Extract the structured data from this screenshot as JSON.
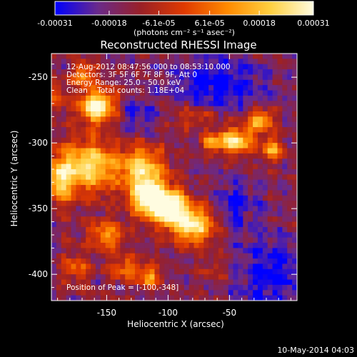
{
  "colorbar": {
    "tick_labels": [
      "-0.00031",
      "-0.00018",
      "-6.1e-05",
      "6.1e-05",
      "0.00018",
      "0.00031"
    ],
    "tick_values": [
      -0.00031,
      -0.00018,
      -6.1e-05,
      6.1e-05,
      0.00018,
      0.00031
    ],
    "range": [
      -0.00031,
      0.00031
    ],
    "units_label": "(photons cm⁻² s⁻¹ asec⁻²)",
    "colormap": [
      "#0000ff",
      "#6a2a8a",
      "#9a2026",
      "#e03a00",
      "#ff8a00",
      "#ffd040",
      "#fffce0"
    ]
  },
  "title": "Reconstructed RHESSI Image",
  "info_lines": [
    "12-Aug-2012 08:47:56.000 to 08:53:10.000",
    "Detectors: 3F 5F 6F 7F 8F 9F, Att 0",
    "Energy Range: 25.0 - 50.0 keV",
    "Clean    Total counts: 1.18E+04"
  ],
  "peak_label": "Position of Peak = [-100,-348]",
  "timestamp": "10-May-2014 04:03",
  "chart_data": {
    "type": "heatmap",
    "title": "Reconstructed RHESSI Image",
    "xlabel": "Heliocentric X (arcsec)",
    "ylabel": "Heliocentric Y (arcsec)",
    "xlim": [
      -195,
      5
    ],
    "ylim": [
      -420,
      -232
    ],
    "xticks": [
      -150,
      -100,
      -50
    ],
    "yticks": [
      -250,
      -300,
      -350,
      -400
    ],
    "xtick_labels": [
      "-150",
      "-100",
      "-50"
    ],
    "ytick_labels": [
      "-250",
      "-300",
      "-350",
      "-400"
    ],
    "peak": [
      -100,
      -348
    ],
    "cell_arcsec": 4,
    "sources": [
      {
        "x": -158,
        "y": -272,
        "sx": 10,
        "sy": 9,
        "amp": 0.95
      },
      {
        "x": -168,
        "y": -248,
        "sx": 7,
        "sy": 6,
        "amp": 0.55
      },
      {
        "x": -165,
        "y": -318,
        "sx": 18,
        "sy": 14,
        "amp": 0.78
      },
      {
        "x": -120,
        "y": -320,
        "sx": 12,
        "sy": 12,
        "amp": 0.7
      },
      {
        "x": -100,
        "y": -348,
        "sx": 10,
        "sy": 10,
        "amp": 1.0
      },
      {
        "x": -80,
        "y": -362,
        "sx": 12,
        "sy": 10,
        "amp": 0.85
      },
      {
        "x": -118,
        "y": -342,
        "sx": 9,
        "sy": 10,
        "amp": 0.8
      },
      {
        "x": -188,
        "y": -330,
        "sx": 6,
        "sy": 12,
        "amp": 0.65
      },
      {
        "x": -150,
        "y": -370,
        "sx": 10,
        "sy": 8,
        "amp": 0.5
      },
      {
        "x": -175,
        "y": -395,
        "sx": 8,
        "sy": 8,
        "amp": 0.35
      },
      {
        "x": -135,
        "y": -395,
        "sx": 9,
        "sy": 7,
        "amp": 0.4
      },
      {
        "x": -115,
        "y": -402,
        "sx": 6,
        "sy": 6,
        "amp": 0.55
      },
      {
        "x": -45,
        "y": -298,
        "sx": 10,
        "sy": 7,
        "amp": 0.8
      },
      {
        "x": -25,
        "y": -283,
        "sx": 7,
        "sy": 6,
        "amp": 0.7
      },
      {
        "x": -15,
        "y": -305,
        "sx": 6,
        "sy": 6,
        "amp": 0.6
      },
      {
        "x": -65,
        "y": -300,
        "sx": 6,
        "sy": 5,
        "amp": 0.45
      },
      {
        "x": -80,
        "y": -280,
        "sx": 12,
        "sy": 6,
        "amp": 0.28
      },
      {
        "x": -190,
        "y": -265,
        "sx": 5,
        "sy": 7,
        "amp": 0.4
      },
      {
        "x": -60,
        "y": -395,
        "sx": 8,
        "sy": 6,
        "amp": 0.22
      }
    ],
    "negative_regions": [
      {
        "x": -60,
        "y": -255,
        "sx": 28,
        "sy": 14,
        "amp": 0.35
      },
      {
        "x": -15,
        "y": -400,
        "sx": 22,
        "sy": 20,
        "amp": 0.32
      },
      {
        "x": -125,
        "y": -280,
        "sx": 10,
        "sy": 8,
        "amp": 0.25
      },
      {
        "x": -45,
        "y": -345,
        "sx": 12,
        "sy": 12,
        "amp": 0.3
      }
    ]
  }
}
